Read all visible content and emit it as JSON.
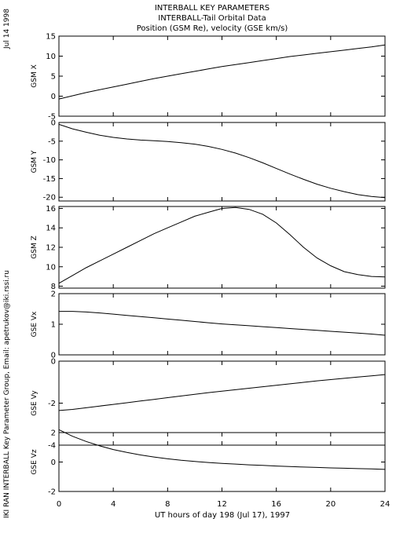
{
  "page": {
    "title_lines": [
      "INTERBALL KEY PARAMETERS",
      "INTERBALL-Tail Orbital Data",
      "Position (GSM Re), velocity (GSE km/s)"
    ],
    "date_label": "Jul 14 1998",
    "credit": "IKI RAN INTERBALL Key Parameter Group, Email: apetrukov@iki.rssi.ru"
  },
  "chart_data": {
    "type": "line",
    "xlabel": "UT hours of day 198 (Jul 17), 1997",
    "xlim": [
      0,
      24
    ],
    "xticks": [
      0,
      4,
      8,
      12,
      16,
      20,
      24
    ],
    "x": [
      0,
      1,
      2,
      3,
      4,
      5,
      6,
      7,
      8,
      9,
      10,
      11,
      12,
      13,
      14,
      15,
      16,
      17,
      18,
      19,
      20,
      21,
      22,
      23,
      24
    ],
    "panels": [
      {
        "ylabel": "GSM X",
        "ylim": [
          -5,
          15
        ],
        "yticks": [
          -5,
          0,
          5,
          10,
          15
        ],
        "values": [
          -0.7,
          0.1,
          0.9,
          1.6,
          2.3,
          3.0,
          3.7,
          4.4,
          5.0,
          5.6,
          6.2,
          6.8,
          7.4,
          7.9,
          8.4,
          8.9,
          9.4,
          9.9,
          10.3,
          10.7,
          11.1,
          11.5,
          11.9,
          12.3,
          12.8
        ]
      },
      {
        "ylabel": "GSM Y",
        "ylim": [
          -21,
          0
        ],
        "yticks": [
          -20,
          -15,
          -10,
          -5,
          0
        ],
        "values": [
          -0.5,
          -1.7,
          -2.6,
          -3.4,
          -4.0,
          -4.4,
          -4.7,
          -4.9,
          -5.1,
          -5.4,
          -5.8,
          -6.4,
          -7.2,
          -8.2,
          -9.4,
          -10.8,
          -12.3,
          -13.8,
          -15.2,
          -16.5,
          -17.6,
          -18.5,
          -19.3,
          -19.8,
          -20.1
        ]
      },
      {
        "ylabel": "GSM Z",
        "ylim": [
          7.8,
          16.2
        ],
        "yticks": [
          8,
          10,
          12,
          14,
          16
        ],
        "values": [
          8.3,
          9.1,
          9.9,
          10.6,
          11.3,
          12.0,
          12.7,
          13.4,
          14.0,
          14.6,
          15.2,
          15.6,
          16.0,
          16.1,
          15.9,
          15.4,
          14.5,
          13.3,
          12.0,
          10.9,
          10.1,
          9.5,
          9.2,
          9.0,
          8.95
        ]
      },
      {
        "ylabel": "GSE Vx",
        "ylim": [
          0,
          2
        ],
        "yticks": [
          0,
          1,
          2
        ],
        "values": [
          1.42,
          1.42,
          1.4,
          1.37,
          1.33,
          1.29,
          1.25,
          1.21,
          1.17,
          1.13,
          1.09,
          1.05,
          1.01,
          0.98,
          0.95,
          0.92,
          0.89,
          0.86,
          0.83,
          0.8,
          0.77,
          0.74,
          0.71,
          0.68,
          0.64
        ]
      },
      {
        "ylabel": "GSE Vy",
        "ylim": [
          -4,
          0
        ],
        "yticks": [
          -4,
          -2,
          0
        ],
        "values": [
          -2.35,
          -2.3,
          -2.22,
          -2.14,
          -2.06,
          -1.98,
          -1.9,
          -1.82,
          -1.74,
          -1.66,
          -1.58,
          -1.5,
          -1.43,
          -1.36,
          -1.29,
          -1.22,
          -1.15,
          -1.08,
          -1.01,
          -0.94,
          -0.88,
          -0.82,
          -0.76,
          -0.7,
          -0.64
        ]
      },
      {
        "ylabel": "GSE Vz",
        "ylim": [
          -2,
          2
        ],
        "yticks": [
          -2,
          0,
          2
        ],
        "values": [
          2.2,
          1.75,
          1.4,
          1.1,
          0.85,
          0.65,
          0.48,
          0.34,
          0.22,
          0.12,
          0.04,
          -0.03,
          -0.09,
          -0.14,
          -0.19,
          -0.23,
          -0.27,
          -0.31,
          -0.34,
          -0.37,
          -0.4,
          -0.42,
          -0.45,
          -0.47,
          -0.5
        ]
      }
    ]
  }
}
